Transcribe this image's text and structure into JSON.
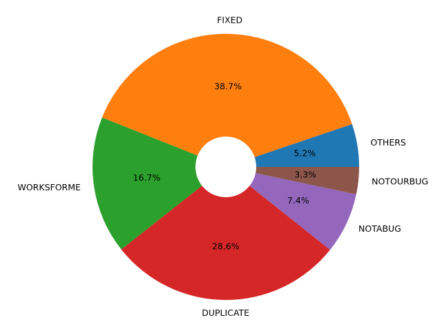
{
  "chart_data": {
    "type": "pie",
    "title": "",
    "donut": true,
    "start_angle_deg": 0,
    "direction": "counterclockwise",
    "slices": [
      {
        "label": "OTHERS",
        "value": 5.2,
        "pct_label": "5.2%",
        "color": "#1f77b4"
      },
      {
        "label": "FIXED",
        "value": 38.7,
        "pct_label": "38.7%",
        "color": "#ff7f0e"
      },
      {
        "label": "WORKSFORME",
        "value": 16.7,
        "pct_label": "16.7%",
        "color": "#2ca02c"
      },
      {
        "label": "DUPLICATE",
        "value": 28.6,
        "pct_label": "28.6%",
        "color": "#d62728"
      },
      {
        "label": "NOTABUG",
        "value": 7.4,
        "pct_label": "7.4%",
        "color": "#9467bd"
      },
      {
        "label": "NOTOURBUG",
        "value": 3.3,
        "pct_label": "3.3%",
        "color": "#8c564b"
      }
    ]
  }
}
